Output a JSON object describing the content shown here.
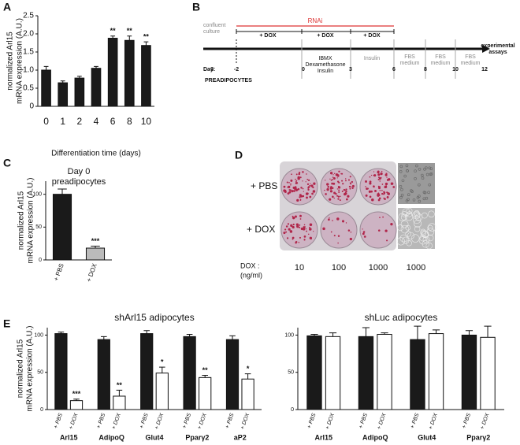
{
  "panel_labels": [
    "A",
    "B",
    "C",
    "D",
    "E"
  ],
  "chart_data": [
    {
      "type": "bar",
      "categories": [
        "0",
        "1",
        "2",
        "4",
        "6",
        "8",
        "10"
      ],
      "values": [
        1.0,
        0.65,
        0.78,
        1.05,
        1.88,
        1.82,
        1.68
      ],
      "errors": [
        0.1,
        0.05,
        0.05,
        0.05,
        0.06,
        0.12,
        0.1
      ],
      "significance": [
        null,
        null,
        null,
        null,
        "**",
        "**",
        "**"
      ],
      "color": "#1a1a1a",
      "ylim": [
        0,
        2.5
      ],
      "yticks": [
        0,
        0.5,
        {
          "value": 1,
          "label": "1.0"
        },
        1.5,
        {
          "value": 2,
          "label": "2.0"
        },
        2.5
      ],
      "ylabel": [
        "normalized Arl15",
        "mRNA expression (A.U.)"
      ],
      "xlabel": "Differentiation time (days)"
    },
    {
      "type": "bar",
      "title": [
        "Day 0",
        "preadipocytes"
      ],
      "categories": [
        "+ PBS",
        "+ DOX"
      ],
      "values": [
        100,
        18
      ],
      "errors": [
        8,
        3
      ],
      "significance": [
        null,
        "***"
      ],
      "colors": [
        "#1a1a1a",
        "#bbbbbb"
      ],
      "ylim": [
        0,
        120
      ],
      "yticks": [
        0,
        50,
        100
      ],
      "ylabel": [
        "normalized Arl15",
        "mRNA expression (A.U.)"
      ]
    },
    {
      "type": "bar",
      "title": [
        "shArl15 adipocytes"
      ],
      "categories": [
        "Arl15",
        "AdipoQ",
        "Glut4",
        "Pparγ2",
        "aP2"
      ],
      "series": [
        {
          "name": "+ PBS",
          "color": "#1a1a1a",
          "values": [
            102,
            94,
            102,
            98,
            94
          ],
          "errors": [
            2,
            4,
            4,
            3,
            5
          ]
        },
        {
          "name": "+ DOX",
          "color": "#ffffff",
          "values": [
            12,
            18,
            49,
            43,
            41
          ],
          "errors": [
            2,
            8,
            8,
            3,
            7
          ],
          "significance": [
            "***",
            "**",
            "*",
            "**",
            "*"
          ]
        }
      ],
      "ylim": [
        0,
        110
      ],
      "yticks": [
        0,
        50,
        100
      ],
      "ylabel": [
        "normalized Arl15",
        "mRNA expression (A.U.)"
      ]
    },
    {
      "type": "bar",
      "title": [
        "shLuc adipocytes"
      ],
      "categories": [
        "Arl15",
        "AdipoQ",
        "Glut4",
        "Pparγ2"
      ],
      "series": [
        {
          "name": "+ PBS",
          "color": "#1a1a1a",
          "values": [
            99,
            98,
            94,
            100
          ],
          "errors": [
            2,
            12,
            18,
            6
          ]
        },
        {
          "name": "+ DOX",
          "color": "#ffffff",
          "values": [
            98,
            101,
            102,
            97
          ],
          "errors": [
            5,
            2,
            5,
            15
          ]
        }
      ],
      "ylim": [
        0,
        110
      ],
      "yticks": [
        0,
        50,
        100
      ]
    }
  ],
  "timeline": {
    "start_label": [
      "confluent",
      "culture"
    ],
    "rnai": "RNAi",
    "dox": [
      "+ DOX",
      "+ DOX",
      "+ DOX"
    ],
    "induction": [
      "IBMX",
      "Dexamethasone",
      "Insulin"
    ],
    "insulin": "Insulin",
    "fbs": [
      [
        "FBS",
        "medium"
      ],
      [
        "FBS",
        "medium"
      ],
      [
        "FBS",
        "medium"
      ]
    ],
    "end": [
      "experimental",
      "assays"
    ],
    "day_label": "Day:",
    "days": [
      "-3",
      "-2",
      "0",
      "3",
      "6",
      "8",
      "10",
      "12"
    ],
    "stage": "PREADIPOCYTES"
  },
  "plate": {
    "rows": [
      "+ PBS",
      "+ DOX"
    ],
    "dose_label": [
      "DOX :",
      "(ng/ml)"
    ],
    "doses": [
      "10",
      "100",
      "1000",
      "1000"
    ]
  }
}
